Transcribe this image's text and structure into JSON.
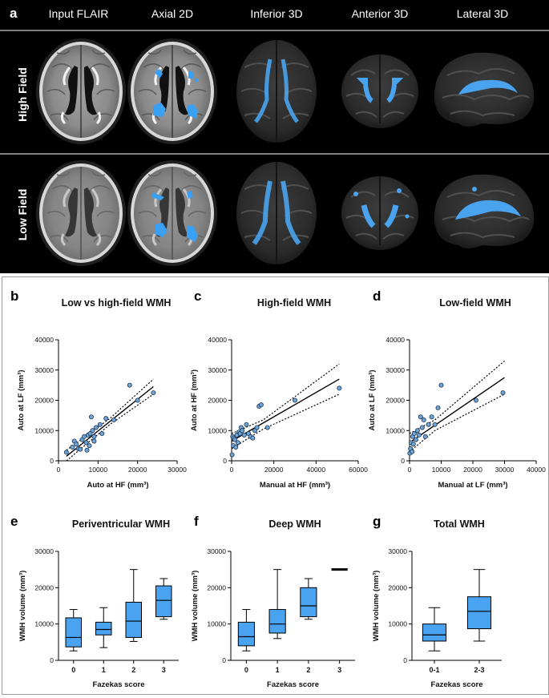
{
  "top_panel": {
    "label": "a",
    "columns": [
      "Input FLAIR",
      "Axial 2D",
      "Inferior 3D",
      "Anterior 3D",
      "Lateral 3D"
    ],
    "rows": [
      "High Field",
      "Low Field"
    ]
  },
  "colors": {
    "wmh": "#4ba3ee",
    "box": "#4aa3f0",
    "point": "#6ea5d6"
  },
  "chart_data": [
    {
      "id": "b",
      "type": "scatter",
      "title": "Low vs high-field WMH",
      "xlabel": "Auto at HF (mm³)",
      "ylabel": "Auto at LF (mm³)",
      "xlim": [
        0,
        30000
      ],
      "ylim": [
        0,
        40000
      ],
      "xticks": [
        "0",
        "10000",
        "20000",
        "30000"
      ],
      "yticks": [
        "0",
        "10000",
        "20000",
        "30000",
        "40000"
      ],
      "x": [
        2000,
        3500,
        4000,
        4500,
        5000,
        5500,
        6000,
        6500,
        7000,
        7200,
        7500,
        7800,
        8000,
        8300,
        8600,
        9000,
        9000,
        9500,
        10500,
        11000,
        12000,
        14000,
        18000,
        20000,
        24000
      ],
      "y": [
        2800,
        4500,
        6500,
        5500,
        4000,
        3800,
        7000,
        8000,
        6000,
        3500,
        8500,
        5000,
        9000,
        14500,
        10000,
        8000,
        6500,
        11000,
        12000,
        9000,
        14000,
        13500,
        25000,
        20000,
        22500
      ],
      "fit": {
        "x": [
          2000,
          24000
        ],
        "y": [
          1500,
          24500
        ]
      },
      "ci_upper": {
        "x": [
          2000,
          13000,
          24000
        ],
        "y": [
          3500,
          14000,
          27000
        ]
      },
      "ci_lower": {
        "x": [
          2000,
          13000,
          24000
        ],
        "y": [
          -500,
          12000,
          22000
        ]
      }
    },
    {
      "id": "c",
      "type": "scatter",
      "title": "High-field WMH",
      "xlabel": "Manual at HF (mm³)",
      "ylabel": "Auto at HF (mm³)",
      "xlim": [
        0,
        60000
      ],
      "ylim": [
        0,
        40000
      ],
      "xticks": [
        "0",
        "20000",
        "40000",
        "60000"
      ],
      "yticks": [
        "0",
        "10000",
        "20000",
        "30000",
        "40000"
      ],
      "x": [
        200,
        500,
        800,
        1000,
        1500,
        2000,
        2500,
        3000,
        3500,
        4000,
        4500,
        5000,
        6000,
        7000,
        8000,
        9000,
        10000,
        11000,
        12000,
        13000,
        14000,
        17000,
        30000,
        51000
      ],
      "y": [
        2000,
        8000,
        5000,
        7500,
        7000,
        4500,
        8500,
        6000,
        9500,
        9000,
        11000,
        10000,
        8500,
        12000,
        9000,
        8000,
        7500,
        10000,
        11000,
        18000,
        18500,
        11000,
        20000,
        24000
      ],
      "fit": {
        "x": [
          0,
          51000
        ],
        "y": [
          6500,
          27000
        ]
      },
      "ci_upper": {
        "x": [
          0,
          15000,
          51000
        ],
        "y": [
          9000,
          13500,
          32000
        ]
      },
      "ci_lower": {
        "x": [
          0,
          15000,
          51000
        ],
        "y": [
          4000,
          10500,
          22000
        ]
      }
    },
    {
      "id": "d",
      "type": "scatter",
      "title": "Low-field WMH",
      "xlabel": "Manual at LF (mm³)",
      "ylabel": "Auto at LF (mm³)",
      "xlim": [
        0,
        40000
      ],
      "ylim": [
        0,
        40000
      ],
      "xticks": [
        "0",
        "10000",
        "20000",
        "30000",
        "40000"
      ],
      "yticks": [
        "0",
        "10000",
        "20000",
        "30000",
        "40000"
      ],
      "x": [
        100,
        300,
        500,
        800,
        1000,
        1200,
        1500,
        2000,
        2500,
        3000,
        3500,
        4000,
        4500,
        5000,
        6000,
        7000,
        8000,
        9000,
        10000,
        21000,
        29500
      ],
      "y": [
        2500,
        4000,
        6000,
        3000,
        8000,
        5500,
        9000,
        7000,
        10000,
        8500,
        14500,
        11000,
        13500,
        8000,
        12000,
        14500,
        12000,
        17500,
        25000,
        20000,
        22500
      ],
      "fit": {
        "x": [
          0,
          30000
        ],
        "y": [
          6000,
          27500
        ]
      },
      "ci_upper": {
        "x": [
          0,
          8000,
          30000
        ],
        "y": [
          9000,
          13500,
          33000
        ]
      },
      "ci_lower": {
        "x": [
          0,
          8000,
          30000
        ],
        "y": [
          3000,
          10000,
          22000
        ]
      }
    },
    {
      "id": "e",
      "type": "box",
      "title": "Periventricular WMH",
      "xlabel": "Fazekas score",
      "ylabel": "WMH volume (mm³)",
      "ylim": [
        0,
        30000
      ],
      "yticks": [
        "0",
        "10000",
        "20000",
        "30000"
      ],
      "categories": [
        "0",
        "1",
        "2",
        "3"
      ],
      "boxes": [
        {
          "min": 2600,
          "q1": 3700,
          "median": 6300,
          "q3": 11700,
          "max": 14000
        },
        {
          "min": 3500,
          "q1": 7000,
          "median": 8500,
          "q3": 10500,
          "max": 14500
        },
        {
          "min": 5200,
          "q1": 6300,
          "median": 10800,
          "q3": 16000,
          "max": 25000
        },
        {
          "min": 11300,
          "q1": 12000,
          "median": 16500,
          "q3": 20500,
          "max": 22500
        }
      ]
    },
    {
      "id": "f",
      "type": "box",
      "title": "Deep WMH",
      "xlabel": "Fazekas score",
      "ylabel": "WMH volume (mm³)",
      "ylim": [
        0,
        30000
      ],
      "yticks": [
        "0",
        "10000",
        "20000",
        "30000"
      ],
      "categories": [
        "0",
        "1",
        "2",
        "3"
      ],
      "boxes": [
        {
          "min": 2600,
          "q1": 4000,
          "median": 6500,
          "q3": 10500,
          "max": 14000
        },
        {
          "min": 6000,
          "q1": 7500,
          "median": 10000,
          "q3": 14000,
          "max": 25000
        },
        {
          "min": 11300,
          "q1": 12000,
          "median": 15000,
          "q3": 20000,
          "max": 22500
        },
        {
          "min": 25000,
          "q1": 25000,
          "median": 25000,
          "q3": 25000,
          "max": 25000
        }
      ]
    },
    {
      "id": "g",
      "type": "box",
      "title": "Total WMH",
      "xlabel": "Fazekas score",
      "ylabel": "WMH volume (mm³)",
      "ylim": [
        0,
        30000
      ],
      "yticks": [
        "0",
        "10000",
        "20000",
        "30000"
      ],
      "categories": [
        "0-1",
        "2-3"
      ],
      "boxes": [
        {
          "min": 2600,
          "q1": 5300,
          "median": 7000,
          "q3": 10000,
          "max": 14500
        },
        {
          "min": 5300,
          "q1": 8700,
          "median": 13500,
          "q3": 17500,
          "max": 25000
        }
      ]
    }
  ]
}
